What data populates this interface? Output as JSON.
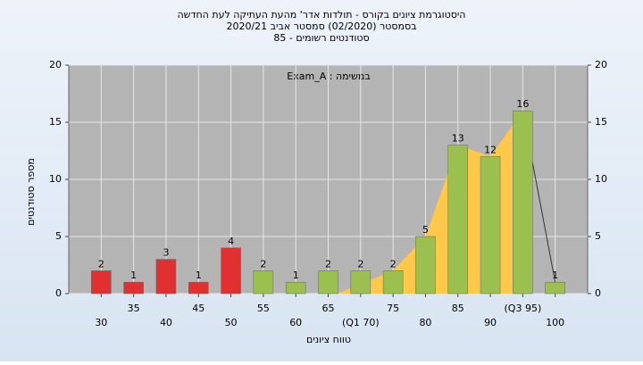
{
  "chart_data": {
    "type": "bar",
    "title": "היסטוגרמת ציונים בקורס - תולדות אדר' מהעת העתיקה לעת החדשה",
    "subtitle": "בסמסטר  (02/2020)  סמסטר אביב 2020/21",
    "subtitle2": "סטודנטים רשומים - 85",
    "annotation": "במשימה : Exam_A",
    "y_label": "מספר סטודנטים",
    "x_label": "טווח ציונים",
    "categories": [
      "30",
      "35",
      "40",
      "45",
      "50",
      "55",
      "60",
      "65",
      "(Q1 70)",
      "75",
      "80",
      "85",
      "90",
      "(Q3 95)",
      "100"
    ],
    "values": [
      2,
      1,
      3,
      1,
      4,
      2,
      1,
      2,
      2,
      2,
      5,
      13,
      12,
      16,
      1
    ],
    "colors": [
      "#e03030",
      "#e03030",
      "#e03030",
      "#e03030",
      "#e03030",
      "#9cc050",
      "#9cc050",
      "#9cc050",
      "#9cc050",
      "#9cc050",
      "#9cc050",
      "#9cc050",
      "#9cc050",
      "#9cc050",
      "#9cc050"
    ],
    "area_color": "#ffc84a",
    "ylim": [
      0,
      20
    ],
    "yticks": [
      0,
      5,
      10,
      15,
      20
    ],
    "y2lim": [
      0,
      20
    ],
    "y2ticks": [
      0,
      5,
      10,
      15,
      20
    ],
    "grid": true
  }
}
